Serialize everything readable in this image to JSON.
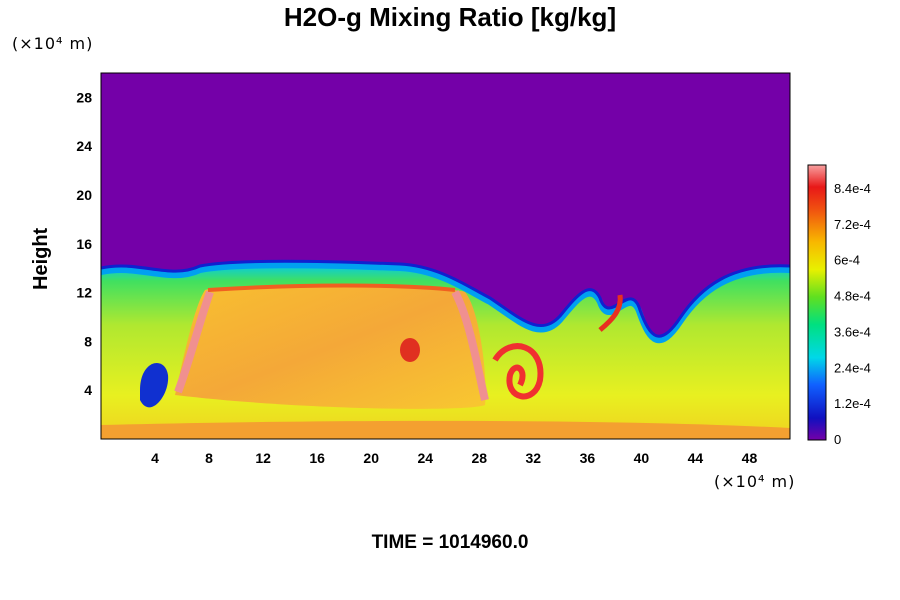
{
  "chart_data": {
    "type": "heatmap",
    "title": "H2O-g Mixing Ratio [kg/kg]",
    "ylabel": "Height",
    "x_unit": "(×10⁴ m)",
    "y_unit": "(×10⁴ m)",
    "time_label": "TIME = 1014960.0",
    "xlim": [
      0,
      51
    ],
    "ylim": [
      0,
      30
    ],
    "x_ticks": [
      4,
      8,
      12,
      16,
      20,
      24,
      28,
      32,
      36,
      40,
      44,
      48
    ],
    "y_ticks": [
      4,
      8,
      12,
      16,
      20,
      24,
      28
    ],
    "colorbar": {
      "min": 0,
      "max": 0.00092,
      "labels": [
        "0",
        "1.2e-4",
        "2.4e-4",
        "3.6e-4",
        "4.8e-4",
        "6e-4",
        "7.2e-4",
        "8.4e-4"
      ],
      "label_values": [
        0,
        0.00012,
        0.00024,
        0.00036,
        0.00048,
        0.0006,
        0.00072,
        0.00084
      ]
    },
    "colors": {
      "dry": "#7400a8",
      "moist": "#f0b040",
      "peak": "#f09090"
    },
    "features": [
      {
        "kind": "moist-layer-top",
        "y": 14
      },
      {
        "kind": "warm-block",
        "x0": 9,
        "x1": 27,
        "y0": 1.5,
        "y1": 12.5,
        "value": 0.00068
      },
      {
        "kind": "eddy",
        "x": 30,
        "y": 5,
        "value": 0.00078
      },
      {
        "kind": "dry-intrusion",
        "x": 4,
        "y": 5
      }
    ]
  }
}
